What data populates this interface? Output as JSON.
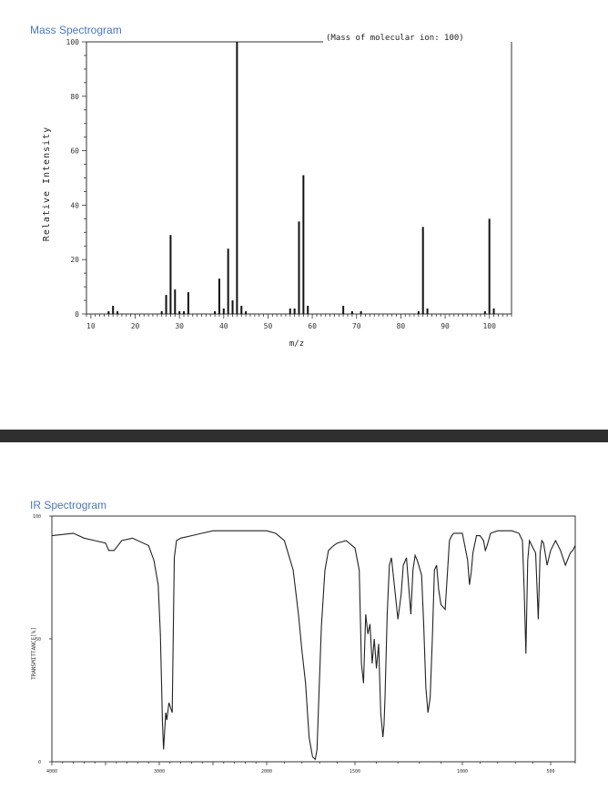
{
  "panels": {
    "ms_title": "Mass Spectrogram",
    "ir_title": "IR Spectrogram"
  },
  "chart_data": [
    {
      "type": "bar",
      "title": "Mass Spectrogram",
      "annotation": "(Mass of molecular ion:   100)",
      "xlabel": "m/z",
      "ylabel": "Relative Intensity",
      "xlim": [
        9,
        105
      ],
      "ylim": [
        0,
        100
      ],
      "xticks": [
        10,
        20,
        30,
        40,
        50,
        60,
        70,
        80,
        90,
        100
      ],
      "yticks": [
        0,
        20,
        40,
        60,
        80,
        100
      ],
      "x": [
        14,
        15,
        16,
        26,
        27,
        28,
        29,
        30,
        31,
        32,
        38,
        39,
        40,
        41,
        42,
        43,
        44,
        45,
        55,
        56,
        57,
        58,
        59,
        67,
        69,
        71,
        84,
        85,
        86,
        99,
        100,
        101
      ],
      "values": [
        1,
        3,
        1,
        1,
        7,
        29,
        9,
        1,
        1,
        8,
        1,
        13,
        2,
        24,
        5,
        100,
        3,
        1,
        2,
        2,
        34,
        51,
        3,
        3,
        1,
        1,
        1,
        32,
        2,
        1,
        35,
        2
      ]
    },
    {
      "type": "line",
      "title": "IR Spectrogram",
      "xlabel": "",
      "ylabel": "TRANSMITTANCE[%]",
      "xlim": [
        4000,
        400
      ],
      "ylim": [
        0,
        100
      ],
      "xticks": [
        {
          "value": 4000,
          "label": "4000"
        },
        {
          "value": 3000,
          "label": "3000"
        },
        {
          "value": 2000,
          "label": "2000"
        },
        {
          "value": 1500,
          "label": "1500"
        },
        {
          "value": 1000,
          "label": "1000"
        },
        {
          "value": 500,
          "label": "500"
        }
      ],
      "yticks": [
        {
          "value": 0,
          "label": "0"
        },
        {
          "value": 50,
          "label": "50"
        },
        {
          "value": 100,
          "label": "100"
        }
      ],
      "x": [
        4000,
        3800,
        3700,
        3600,
        3500,
        3470,
        3420,
        3350,
        3250,
        3100,
        3050,
        3010,
        2990,
        2970,
        2960,
        2940,
        2930,
        2910,
        2880,
        2860,
        2840,
        2800,
        2700,
        2600,
        2500,
        2400,
        2300,
        2200,
        2100,
        2000,
        1950,
        1900,
        1850,
        1820,
        1800,
        1780,
        1760,
        1740,
        1725,
        1715,
        1705,
        1690,
        1670,
        1650,
        1620,
        1600,
        1550,
        1500,
        1480,
        1470,
        1460,
        1450,
        1440,
        1430,
        1420,
        1410,
        1400,
        1390,
        1380,
        1370,
        1365,
        1360,
        1350,
        1340,
        1330,
        1300,
        1285,
        1275,
        1260,
        1240,
        1230,
        1220,
        1210,
        1190,
        1180,
        1170,
        1160,
        1150,
        1140,
        1130,
        1120,
        1110,
        1100,
        1080,
        1060,
        1050,
        1040,
        1000,
        970,
        960,
        950,
        940,
        920,
        900,
        880,
        870,
        860,
        840,
        800,
        760,
        720,
        680,
        660,
        650,
        640,
        630,
        620,
        600,
        585,
        570,
        560,
        550,
        540,
        520,
        500,
        480,
        460,
        440,
        420,
        410,
        400
      ],
      "values": [
        92,
        93,
        91,
        90,
        89,
        86,
        86,
        90,
        91,
        88,
        82,
        72,
        52,
        16,
        5,
        20,
        17,
        24,
        20,
        83,
        90,
        91,
        92,
        93,
        94,
        94,
        94,
        94,
        94,
        94,
        93,
        90,
        78,
        60,
        45,
        32,
        10,
        2,
        1,
        5,
        25,
        55,
        78,
        86,
        88,
        89,
        90,
        87,
        78,
        40,
        32,
        60,
        52,
        56,
        40,
        50,
        38,
        48,
        20,
        10,
        15,
        26,
        60,
        80,
        83,
        58,
        68,
        80,
        83,
        60,
        78,
        84,
        82,
        76,
        56,
        30,
        20,
        26,
        50,
        78,
        80,
        70,
        64,
        62,
        90,
        92,
        93,
        93,
        82,
        72,
        77,
        85,
        92,
        92,
        90,
        86,
        88,
        93,
        94,
        94,
        94,
        93,
        90,
        70,
        44,
        82,
        90,
        87,
        85,
        58,
        85,
        90,
        89,
        80,
        86,
        90,
        86,
        80,
        85,
        86,
        88
      ]
    }
  ]
}
